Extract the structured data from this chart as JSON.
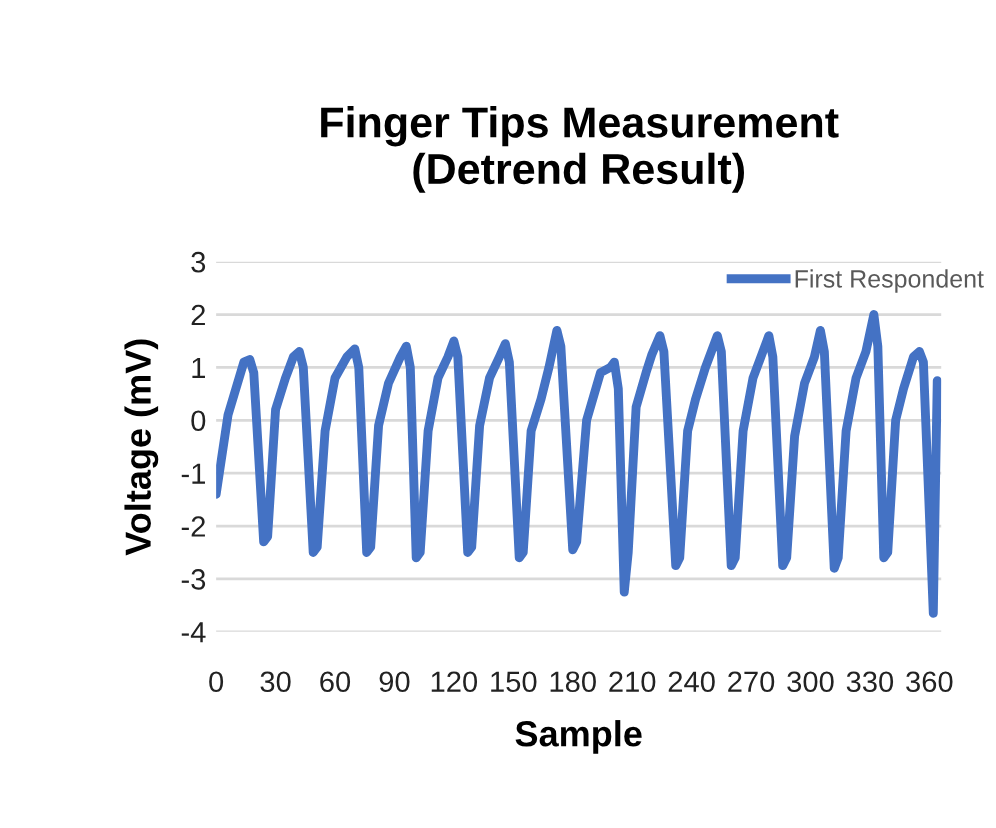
{
  "chart_data": {
    "type": "line",
    "title": "Finger Tips Measurement\n(Detrend Result)",
    "xlabel": "Sample",
    "ylabel": "Voltage (mV)",
    "xlim": [
      0,
      366
    ],
    "xticks": [
      0,
      30,
      60,
      90,
      120,
      150,
      180,
      210,
      240,
      270,
      300,
      330,
      360
    ],
    "ylim": [
      -4,
      3
    ],
    "yticks": [
      -4,
      -3,
      -2,
      -1,
      0,
      1,
      2,
      3
    ],
    "grid": "y",
    "legend": "top right",
    "marker": "none",
    "line_style": "solid",
    "series": [
      {
        "name": "First Respondent",
        "color": "#4472c4",
        "x": [
          0,
          2,
          6,
          10,
          14,
          17,
          19,
          24,
          26,
          30,
          35,
          39,
          42,
          44,
          49,
          51,
          55,
          60,
          66,
          70,
          72,
          76,
          78,
          82,
          87,
          93,
          96,
          98,
          101,
          103,
          107,
          112,
          117,
          120,
          122,
          127,
          129,
          133,
          138,
          143,
          146,
          148,
          153,
          155,
          159,
          164,
          168,
          172,
          174,
          180,
          182,
          187,
          194,
          199,
          201,
          203,
          206,
          208,
          212,
          217,
          220,
          224,
          226,
          232,
          234,
          238,
          242,
          247,
          253,
          255,
          260,
          262,
          266,
          271,
          276,
          279,
          281,
          286,
          288,
          292,
          297,
          302,
          305,
          307,
          312,
          314,
          318,
          323,
          328,
          332,
          334,
          337,
          339,
          343,
          347,
          352,
          355,
          357,
          362,
          364
        ],
        "values": [
          -1.4,
          -0.9,
          0.1,
          0.6,
          1.1,
          1.15,
          0.9,
          -2.3,
          -2.2,
          0.2,
          0.8,
          1.2,
          1.3,
          1.0,
          -2.5,
          -2.4,
          -0.2,
          0.8,
          1.2,
          1.35,
          1.0,
          -2.5,
          -2.4,
          -0.1,
          0.7,
          1.2,
          1.4,
          1.0,
          -2.6,
          -2.5,
          -0.2,
          0.8,
          1.2,
          1.5,
          1.2,
          -2.5,
          -2.4,
          -0.1,
          0.8,
          1.2,
          1.45,
          1.1,
          -2.6,
          -2.5,
          -0.2,
          0.4,
          1.0,
          1.7,
          1.4,
          -2.45,
          -2.3,
          0.0,
          0.9,
          1.0,
          1.1,
          0.6,
          -3.25,
          -2.5,
          0.25,
          0.9,
          1.25,
          1.6,
          1.3,
          -2.75,
          -2.6,
          -0.2,
          0.4,
          1.0,
          1.6,
          1.3,
          -2.75,
          -2.6,
          -0.2,
          0.8,
          1.3,
          1.6,
          1.2,
          -2.75,
          -2.6,
          -0.3,
          0.7,
          1.2,
          1.7,
          1.3,
          -2.8,
          -2.6,
          -0.2,
          0.8,
          1.3,
          2.0,
          1.4,
          -2.6,
          -2.5,
          0.0,
          0.6,
          1.2,
          1.3,
          1.1,
          -3.65,
          0.75
        ]
      }
    ]
  }
}
